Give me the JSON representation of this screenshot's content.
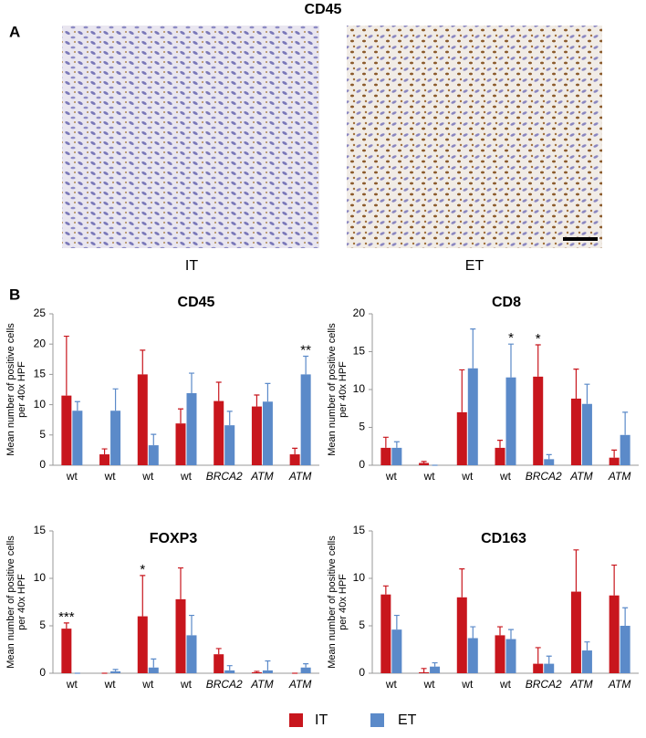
{
  "figure": {
    "panel_a": {
      "label": "A",
      "title": "CD45",
      "images": [
        {
          "label": "IT"
        },
        {
          "label": "ET"
        }
      ]
    },
    "panel_b": {
      "label": "B"
    }
  },
  "chart_data": [
    {
      "type": "bar",
      "title": "CD45",
      "ylabel": [
        "Mean number of positive cells",
        "per 40x HPF"
      ],
      "categories": [
        "wt",
        "wt",
        "wt",
        "wt",
        "BRCA2",
        "ATM",
        "ATM"
      ],
      "italic_categories": [
        false,
        false,
        false,
        false,
        true,
        true,
        true
      ],
      "ylim": [
        0,
        25
      ],
      "yticks": [
        0,
        5,
        10,
        15,
        20,
        25
      ],
      "series": [
        {
          "name": "IT",
          "color": "#c8161d",
          "values": [
            11.5,
            1.8,
            15,
            6.9,
            10.6,
            9.7,
            1.8
          ],
          "errors": [
            9.8,
            0.9,
            4,
            2.4,
            3.1,
            1.9,
            1
          ],
          "significance": [
            null,
            null,
            null,
            null,
            null,
            null,
            null
          ]
        },
        {
          "name": "ET",
          "color": "#5b8ac9",
          "values": [
            9,
            9,
            3.3,
            11.9,
            6.6,
            10.5,
            15
          ],
          "errors": [
            1.5,
            3.6,
            1.8,
            3.3,
            2.3,
            3,
            3
          ],
          "significance": [
            null,
            null,
            null,
            null,
            null,
            null,
            "**"
          ]
        }
      ]
    },
    {
      "type": "bar",
      "title": "CD8",
      "ylabel": [
        "Mean number of positive cells",
        "per 40x HPF"
      ],
      "categories": [
        "wt",
        "wt",
        "wt",
        "wt",
        "BRCA2",
        "ATM",
        "ATM"
      ],
      "italic_categories": [
        false,
        false,
        false,
        false,
        true,
        true,
        true
      ],
      "ylim": [
        0,
        20
      ],
      "yticks": [
        0,
        5,
        10,
        15,
        20
      ],
      "series": [
        {
          "color": "#c8161d",
          "values": [
            2.3,
            0.3,
            7,
            2.3,
            11.7,
            8.8,
            1
          ],
          "errors": [
            1.4,
            0.2,
            5.6,
            1,
            4.2,
            3.9,
            1
          ],
          "significance": [
            null,
            null,
            null,
            null,
            "*",
            null,
            null
          ]
        },
        {
          "color": "#5b8ac9",
          "values": [
            2.3,
            0,
            12.8,
            11.6,
            0.8,
            8.1,
            4
          ],
          "errors": [
            0.8,
            0,
            5.2,
            4.4,
            0.6,
            2.6,
            3
          ],
          "significance": [
            null,
            null,
            null,
            "*",
            null,
            null,
            null
          ]
        }
      ]
    },
    {
      "type": "bar",
      "title": "FOXP3",
      "ylabel": [
        "Mean number of positive cells",
        "per 40x HPF"
      ],
      "categories": [
        "wt",
        "wt",
        "wt",
        "wt",
        "BRCA2",
        "ATM",
        "ATM"
      ],
      "italic_categories": [
        false,
        false,
        false,
        false,
        true,
        true,
        true
      ],
      "ylim": [
        0,
        15
      ],
      "yticks": [
        0,
        5,
        10,
        15
      ],
      "series": [
        {
          "color": "#c8161d",
          "values": [
            4.7,
            0,
            6,
            7.8,
            2,
            0.1,
            0
          ],
          "errors": [
            0.6,
            0,
            4.3,
            3.3,
            0.6,
            0.1,
            0
          ],
          "significance": [
            "***",
            null,
            "*",
            null,
            null,
            null,
            null
          ]
        },
        {
          "color": "#5b8ac9",
          "values": [
            0,
            0.2,
            0.6,
            4,
            0.3,
            0.3,
            0.6
          ],
          "errors": [
            0,
            0.2,
            0.9,
            2.1,
            0.5,
            1,
            0.4
          ],
          "significance": [
            null,
            null,
            null,
            null,
            null,
            null,
            null
          ]
        }
      ]
    },
    {
      "type": "bar",
      "title": "CD163",
      "ylabel": [
        "Mean number of positive cells",
        "per 40x HPF"
      ],
      "categories": [
        "wt",
        "wt",
        "wt",
        "wt",
        "BRCA2",
        "ATM",
        "ATM"
      ],
      "italic_categories": [
        false,
        false,
        false,
        false,
        true,
        true,
        true
      ],
      "ylim": [
        0,
        15
      ],
      "yticks": [
        0,
        5,
        10,
        15
      ],
      "series": [
        {
          "color": "#c8161d",
          "values": [
            8.3,
            0.1,
            8,
            4,
            1,
            8.6,
            8.2
          ],
          "errors": [
            0.9,
            0.4,
            3,
            0.9,
            1.7,
            4.4,
            3.2
          ],
          "significance": [
            null,
            null,
            null,
            null,
            null,
            null,
            null
          ]
        },
        {
          "color": "#5b8ac9",
          "values": [
            4.6,
            0.7,
            3.7,
            3.6,
            1,
            2.4,
            5
          ],
          "errors": [
            1.5,
            0.4,
            1.2,
            1,
            0.8,
            0.9,
            1.9
          ],
          "significance": [
            null,
            null,
            null,
            null,
            null,
            null,
            null
          ]
        }
      ]
    }
  ]
}
